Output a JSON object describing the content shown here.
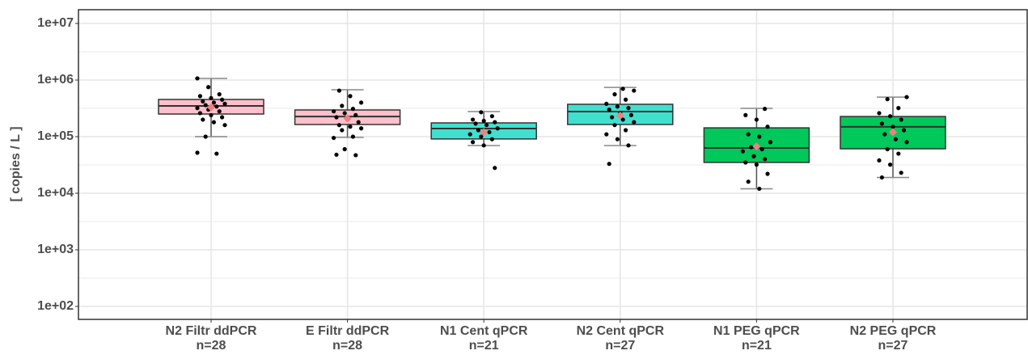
{
  "chart_data": {
    "type": "box",
    "y_label": "[ copies / L ]",
    "log_scale": true,
    "grid": true,
    "ylim": [
      59,
      17500000
    ],
    "yticks": [
      {
        "value": 100,
        "label": "1e+02"
      },
      {
        "value": 1000,
        "label": "1e+03"
      },
      {
        "value": 10000,
        "label": "1e+04"
      },
      {
        "value": 100000,
        "label": "1e+05"
      },
      {
        "value": 1000000,
        "label": "1e+06"
      },
      {
        "value": 10000000,
        "label": "1e+07"
      }
    ],
    "minor_yticks": [
      316.2,
      3162.3,
      31622.8,
      316227.8,
      3162277.7
    ],
    "categories": [
      "N2 Filtr ddPCR",
      "E Filtr ddPCR",
      "N1 Cent qPCR",
      "N2 Cent qPCR",
      "N1 PEG qPCR",
      "N2 PEG qPCR"
    ],
    "sample_labels": [
      "n=28",
      "n=28",
      "n=21",
      "n=27",
      "n=21",
      "n=27"
    ],
    "colors": [
      "#ffc0cb",
      "#ffc0cb",
      "#40e0d0",
      "#40e0d0",
      "#00c85a",
      "#00c85a"
    ],
    "mean_color": "#f08080",
    "boxes": [
      {
        "low": 100000,
        "q1": 251000,
        "median": 349000,
        "q3": 454000,
        "high": 1070000,
        "mean": 330000
      },
      {
        "low": 97000,
        "q1": 164000,
        "median": 227000,
        "q3": 296000,
        "high": 674000,
        "mean": 210000
      },
      {
        "low": 69700,
        "q1": 91000,
        "median": 139000,
        "q3": 175000,
        "high": 277000,
        "mean": 120000
      },
      {
        "low": 69700,
        "q1": 164000,
        "median": 277000,
        "q3": 373000,
        "high": 740000,
        "mean": 235000
      },
      {
        "low": 12000,
        "q1": 35000,
        "median": 63000,
        "q3": 143000,
        "high": 316000,
        "mean": 67000
      },
      {
        "low": 19000,
        "q1": 61000,
        "median": 149000,
        "q3": 227000,
        "high": 500000,
        "mean": 120000
      }
    ],
    "points": [
      [
        1070000,
        750000,
        560000,
        520000,
        480000,
        450000,
        420000,
        400000,
        380000,
        360000,
        340000,
        320000,
        300000,
        280000,
        260000,
        240000,
        220000,
        200000,
        180000,
        160000,
        100000,
        50000,
        52000
      ],
      [
        650000,
        520000,
        400000,
        350000,
        310000,
        280000,
        260000,
        240000,
        220000,
        200000,
        180000,
        160000,
        150000,
        140000,
        130000,
        100000,
        95000,
        60000,
        47000,
        48000
      ],
      [
        270000,
        230000,
        200000,
        190000,
        180000,
        170000,
        160000,
        140000,
        130000,
        120000,
        110000,
        100000,
        90000,
        80000,
        70000,
        28000
      ],
      [
        700000,
        650000,
        560000,
        450000,
        380000,
        340000,
        320000,
        300000,
        260000,
        240000,
        220000,
        200000,
        180000,
        160000,
        130000,
        110000,
        90000,
        70000,
        33000
      ],
      [
        310000,
        240000,
        200000,
        150000,
        110000,
        100000,
        80000,
        65000,
        60000,
        55000,
        45000,
        40000,
        35000,
        32000,
        22000,
        16000,
        12000
      ],
      [
        500000,
        460000,
        320000,
        260000,
        230000,
        200000,
        170000,
        150000,
        130000,
        110000,
        90000,
        80000,
        60000,
        50000,
        38000,
        32000,
        23000,
        19000
      ]
    ]
  }
}
